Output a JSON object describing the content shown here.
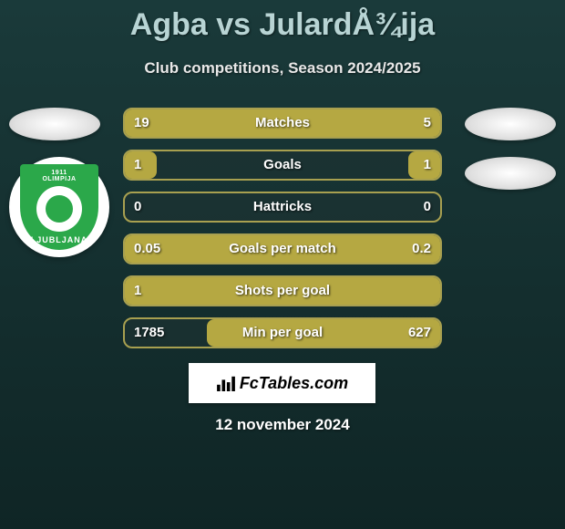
{
  "title": "Agba vs JulardÅ¾ija",
  "subtitle": "Club competitions, Season 2024/2025",
  "club": {
    "top_text": "1911",
    "name_top": "OLIMPIJA",
    "name_bottom": "LJUBLJANA"
  },
  "stats": [
    {
      "label": "Matches",
      "left_val": "19",
      "right_val": "5",
      "left_pct": 85,
      "right_pct": 15,
      "fill_type": "split"
    },
    {
      "label": "Goals",
      "left_val": "1",
      "right_val": "1",
      "left_pct": 10,
      "right_pct": 10,
      "fill_type": "split"
    },
    {
      "label": "Hattricks",
      "left_val": "0",
      "right_val": "0",
      "left_pct": 0,
      "right_pct": 0,
      "fill_type": "none"
    },
    {
      "label": "Goals per match",
      "left_val": "0.05",
      "right_val": "0.2",
      "left_pct": 20,
      "right_pct": 80,
      "fill_type": "split"
    },
    {
      "label": "Shots per goal",
      "left_val": "1",
      "right_val": "",
      "left_pct": 100,
      "right_pct": 0,
      "fill_type": "full"
    },
    {
      "label": "Min per goal",
      "left_val": "1785",
      "right_val": "627",
      "left_pct": 26,
      "right_pct": 74,
      "fill_type": "right"
    }
  ],
  "logo_text": "FcTables.com",
  "date": "12 november 2024",
  "colors": {
    "bar_fill": "#b5a842",
    "bar_border": "#a8a050",
    "bg_top": "#1a3a3a",
    "bg_bottom": "#0f2525",
    "club_green": "#2ba84a"
  }
}
